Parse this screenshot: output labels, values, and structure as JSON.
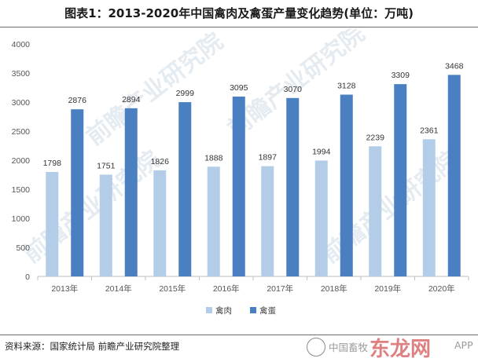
{
  "title": "图表1：2013-2020年中国禽肉及禽蛋产量变化趋势(单位：万吨)",
  "source": "资料来源：国家统计局 前瞻产业研究院整理",
  "watermark": "前瞻产业研究院",
  "stamp": {
    "prefix": "中国畜牧",
    "logo": "东龙网",
    "suffix": "APP"
  },
  "colors": {
    "meat": "#b3cde9",
    "egg": "#4a7fc1",
    "axis": "#bfbfbf",
    "grid": "#e6e6e6"
  },
  "chart_data": {
    "type": "bar",
    "categories": [
      "2013年",
      "2014年",
      "2015年",
      "2016年",
      "2017年",
      "2018年",
      "2019年",
      "2020年"
    ],
    "series": [
      {
        "name": "禽肉",
        "values": [
          1798,
          1751,
          1826,
          1888,
          1897,
          1994,
          2239,
          2361
        ]
      },
      {
        "name": "禽蛋",
        "values": [
          2876,
          2894,
          2999,
          3095,
          3070,
          3128,
          3309,
          3468
        ]
      }
    ],
    "yticks": [
      "0",
      "500",
      "1000",
      "1500",
      "2000",
      "2500",
      "3000",
      "3500",
      "4000"
    ],
    "ylim": [
      0,
      4000
    ],
    "legend_position": "bottom",
    "grid": false
  }
}
